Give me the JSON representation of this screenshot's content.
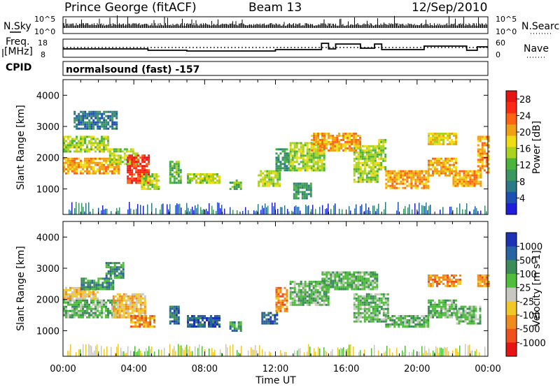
{
  "header": {
    "station": "Prince George (fitACF)",
    "beam": "Beam 13",
    "date": "12/Sep/2010"
  },
  "top_panels": {
    "nsky_label": "N.Sky",
    "nsky_ticks": [
      "10^5",
      "10^0"
    ],
    "nsearch_label": "N.Search",
    "nsearch_ticks": [
      "10^5",
      "10^0"
    ],
    "freq_label_1": "Freq.",
    "freq_label_2": "[MHz]",
    "freq_ticks": [
      "18",
      "8"
    ],
    "nave_label": "Nave",
    "nave_ticks": [
      "60",
      "0"
    ],
    "cpid_label": "CPID",
    "cpid_text": "normalsound (fast) -157"
  },
  "chart_data": [
    {
      "type": "heatmap",
      "title": "",
      "xlabel": "",
      "ylabel": "Slant Range [km]",
      "x_ticks": [
        "00:00",
        "04:00",
        "08:00",
        "12:00",
        "16:00",
        "20:00",
        "00:00"
      ],
      "xlim_hours": [
        0,
        24
      ],
      "y_ticks": [
        1000,
        2000,
        3000,
        4000
      ],
      "ylim": [
        180,
        4500
      ],
      "colorbar": {
        "label": "Power [dB]",
        "ticks": [
          4,
          8,
          12,
          16,
          20,
          24,
          28
        ],
        "range": [
          0,
          30
        ],
        "colors": [
          "#1e1edc",
          "#1e50b4",
          "#2a7a8a",
          "#3c9660",
          "#4cb43c",
          "#aad21e",
          "#f0dc14",
          "#f0a014",
          "#ff6414",
          "#ff2814",
          "#e61414"
        ]
      },
      "echo_regions": [
        {
          "start_h": 0.0,
          "end_h": 3.2,
          "range_lo_km": 1500,
          "range_hi_km": 2000,
          "value_db": 20
        },
        {
          "start_h": 0.0,
          "end_h": 2.6,
          "range_lo_km": 2200,
          "range_hi_km": 2700,
          "value_db": 14
        },
        {
          "start_h": 0.6,
          "end_h": 3.0,
          "range_lo_km": 2900,
          "range_hi_km": 3500,
          "value_db": 6
        },
        {
          "start_h": 2.6,
          "end_h": 4.2,
          "range_lo_km": 1800,
          "range_hi_km": 2300,
          "value_db": 16
        },
        {
          "start_h": 3.6,
          "end_h": 4.8,
          "range_lo_km": 1200,
          "range_hi_km": 2100,
          "value_db": 26
        },
        {
          "start_h": 4.4,
          "end_h": 5.4,
          "range_lo_km": 1000,
          "range_hi_km": 1500,
          "value_db": 16
        },
        {
          "start_h": 6.0,
          "end_h": 6.6,
          "range_lo_km": 1200,
          "range_hi_km": 1900,
          "value_db": 12
        },
        {
          "start_h": 7.0,
          "end_h": 8.8,
          "range_lo_km": 1200,
          "range_hi_km": 1500,
          "value_db": 16
        },
        {
          "start_h": 9.4,
          "end_h": 10.0,
          "range_lo_km": 1000,
          "range_hi_km": 1300,
          "value_db": 12
        },
        {
          "start_h": 11.0,
          "end_h": 12.2,
          "range_lo_km": 1100,
          "range_hi_km": 1600,
          "value_db": 14
        },
        {
          "start_h": 12.0,
          "end_h": 12.8,
          "range_lo_km": 1600,
          "range_hi_km": 2300,
          "value_db": 10
        },
        {
          "start_h": 12.8,
          "end_h": 14.8,
          "range_lo_km": 1600,
          "range_hi_km": 2500,
          "value_db": 16
        },
        {
          "start_h": 13.0,
          "end_h": 14.0,
          "range_lo_km": 700,
          "range_hi_km": 1200,
          "value_db": 8
        },
        {
          "start_h": 14.0,
          "end_h": 16.8,
          "range_lo_km": 2200,
          "range_hi_km": 2800,
          "value_db": 22
        },
        {
          "start_h": 16.4,
          "end_h": 17.8,
          "range_lo_km": 1200,
          "range_hi_km": 2400,
          "value_db": 16
        },
        {
          "start_h": 17.8,
          "end_h": 18.2,
          "range_lo_km": 1600,
          "range_hi_km": 2600,
          "value_db": 16
        },
        {
          "start_h": 18.2,
          "end_h": 20.6,
          "range_lo_km": 1000,
          "range_hi_km": 1600,
          "value_db": 20
        },
        {
          "start_h": 20.6,
          "end_h": 22.2,
          "range_lo_km": 1400,
          "range_hi_km": 2000,
          "value_db": 20
        },
        {
          "start_h": 20.6,
          "end_h": 22.2,
          "range_lo_km": 2400,
          "range_hi_km": 2800,
          "value_db": 18
        },
        {
          "start_h": 22.0,
          "end_h": 23.6,
          "range_lo_km": 1100,
          "range_hi_km": 1600,
          "value_db": 22
        },
        {
          "start_h": 23.4,
          "end_h": 24.0,
          "range_lo_km": 1500,
          "range_hi_km": 2700,
          "value_db": 20
        }
      ]
    },
    {
      "type": "heatmap",
      "title": "",
      "xlabel": "Time UT",
      "ylabel": "Slant Range [km]",
      "x_ticks": [
        "00:00",
        "04:00",
        "08:00",
        "12:00",
        "16:00",
        "20:00",
        "00:00"
      ],
      "xlim_hours": [
        0,
        24
      ],
      "y_ticks": [
        1000,
        2000,
        3000,
        4000
      ],
      "ylim": [
        180,
        4500
      ],
      "colorbar": {
        "label": "Velocity [m s-1]",
        "ticks": [
          "1000",
          "500",
          "100",
          "25",
          "-25",
          "-100",
          "-500",
          "-1000"
        ],
        "colors": [
          "#1e32b4",
          "#2864a0",
          "#3c8c5a",
          "#50be3c",
          "#c8c8c0",
          "#f0c828",
          "#f08c1e",
          "#f0501e",
          "#e61414"
        ]
      },
      "echo_regions": [
        {
          "start_h": 0.0,
          "end_h": 3.0,
          "range_lo_km": 1400,
          "range_hi_km": 2000,
          "value_class": "25"
        },
        {
          "start_h": 0.0,
          "end_h": 2.0,
          "range_lo_km": 2000,
          "range_hi_km": 2400,
          "value_class": "-100"
        },
        {
          "start_h": 1.0,
          "end_h": 2.8,
          "range_lo_km": 2300,
          "range_hi_km": 2700,
          "value_class": "100"
        },
        {
          "start_h": 2.4,
          "end_h": 3.4,
          "range_lo_km": 2700,
          "range_hi_km": 3200,
          "value_class": "100"
        },
        {
          "start_h": 2.8,
          "end_h": 4.6,
          "range_lo_km": 1400,
          "range_hi_km": 2200,
          "value_class": "-100"
        },
        {
          "start_h": 3.8,
          "end_h": 5.2,
          "range_lo_km": 1100,
          "range_hi_km": 1500,
          "value_class": "-500"
        },
        {
          "start_h": 6.0,
          "end_h": 6.5,
          "range_lo_km": 1200,
          "range_hi_km": 1800,
          "value_class": "500"
        },
        {
          "start_h": 7.0,
          "end_h": 8.8,
          "range_lo_km": 1100,
          "range_hi_km": 1500,
          "value_class": "500"
        },
        {
          "start_h": 9.4,
          "end_h": 10.0,
          "range_lo_km": 1000,
          "range_hi_km": 1300,
          "value_class": "100"
        },
        {
          "start_h": 11.2,
          "end_h": 12.1,
          "range_lo_km": 1200,
          "range_hi_km": 1600,
          "value_class": "500"
        },
        {
          "start_h": 12.0,
          "end_h": 12.6,
          "range_lo_km": 1600,
          "range_hi_km": 2400,
          "value_class": "-500"
        },
        {
          "start_h": 12.8,
          "end_h": 15.0,
          "range_lo_km": 1800,
          "range_hi_km": 2600,
          "value_class": "25"
        },
        {
          "start_h": 14.6,
          "end_h": 17.8,
          "range_lo_km": 2300,
          "range_hi_km": 2900,
          "value_class": "25"
        },
        {
          "start_h": 16.4,
          "end_h": 18.4,
          "range_lo_km": 1300,
          "range_hi_km": 2200,
          "value_class": "25"
        },
        {
          "start_h": 18.2,
          "end_h": 20.6,
          "range_lo_km": 1100,
          "range_hi_km": 1500,
          "value_class": "25"
        },
        {
          "start_h": 20.6,
          "end_h": 22.2,
          "range_lo_km": 1400,
          "range_hi_km": 2000,
          "value_class": "25"
        },
        {
          "start_h": 20.6,
          "end_h": 22.4,
          "range_lo_km": 2400,
          "range_hi_km": 2800,
          "value_class": "-500"
        },
        {
          "start_h": 22.2,
          "end_h": 23.6,
          "range_lo_km": 1200,
          "range_hi_km": 1800,
          "value_class": "25"
        },
        {
          "start_h": 23.4,
          "end_h": 24.0,
          "range_lo_km": 2400,
          "range_hi_km": 2800,
          "value_class": "-500"
        }
      ]
    }
  ]
}
